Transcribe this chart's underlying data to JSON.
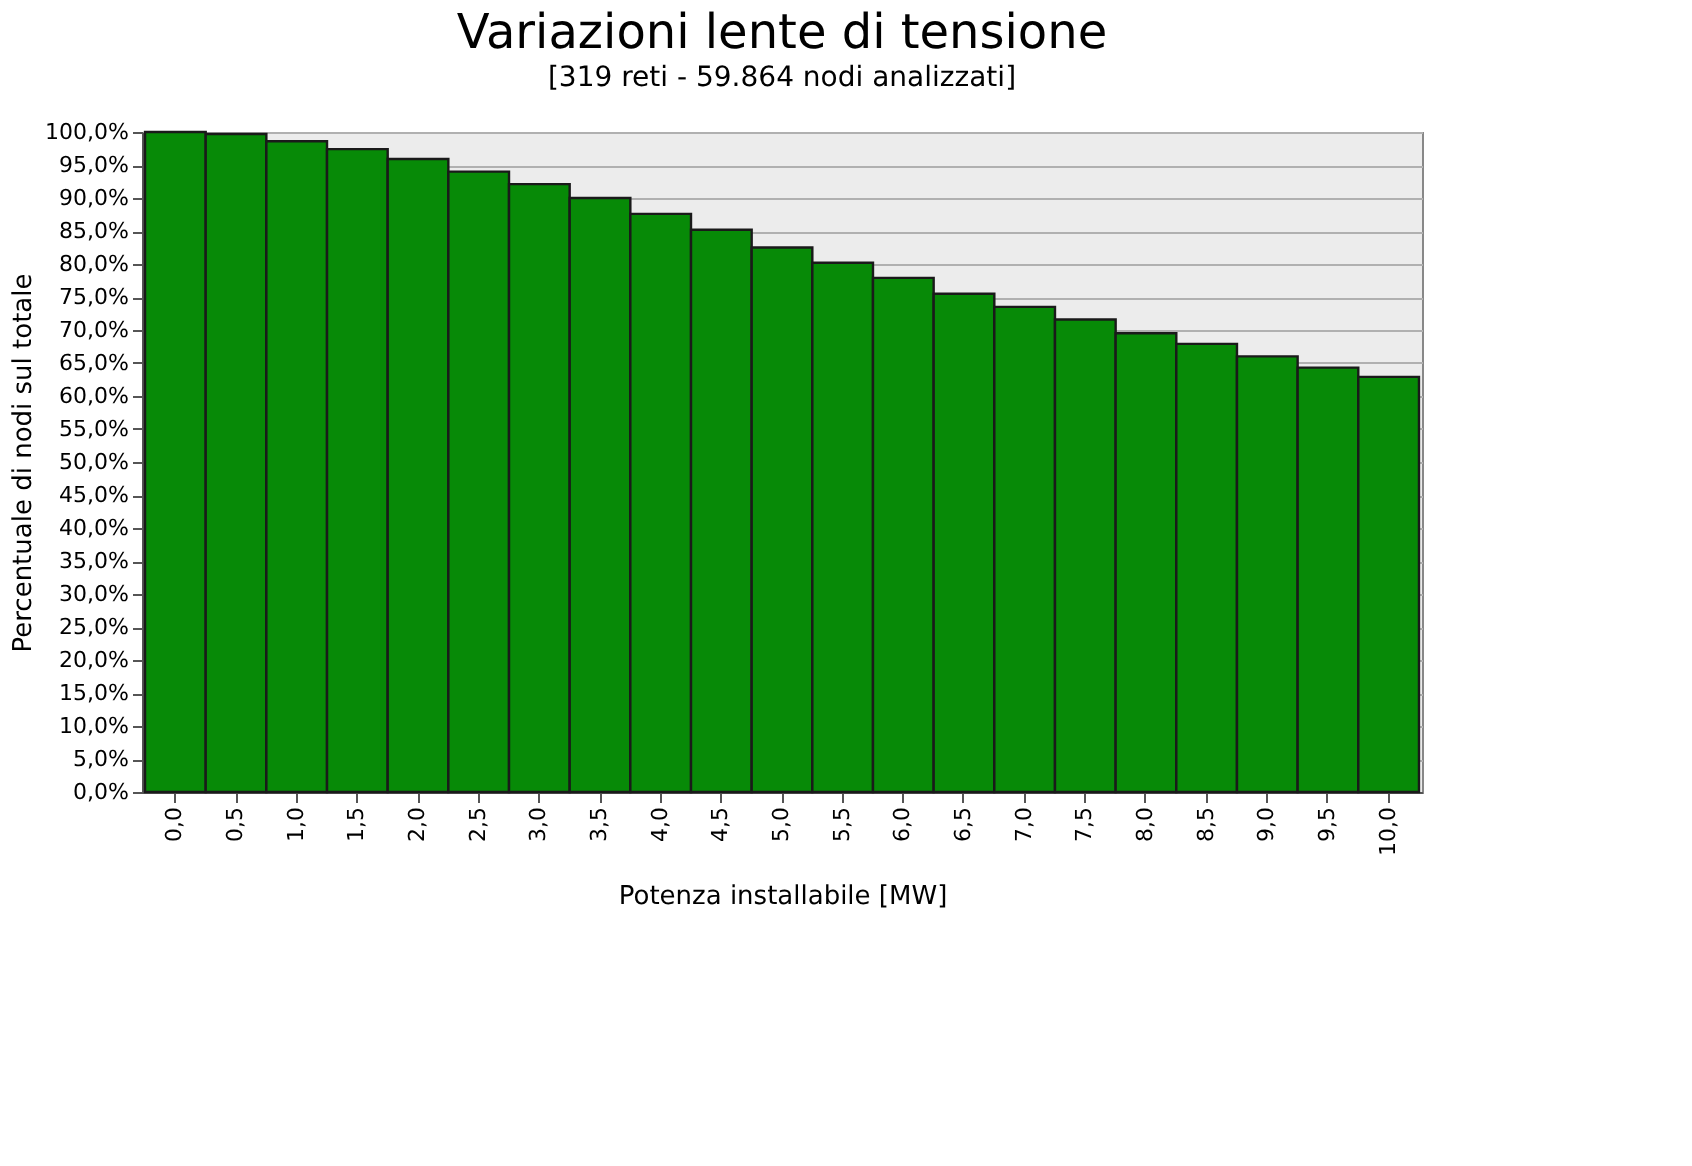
{
  "chart_data": {
    "type": "bar",
    "title": "Variazioni lente di tensione",
    "subtitle": "[319 reti - 59.864 nodi analizzati]",
    "xlabel": "Potenza installabile [MW]",
    "ylabel": "Percentuale di nodi sul totale",
    "categories": [
      "0,0",
      "0,5",
      "1,0",
      "1,5",
      "2,0",
      "2,5",
      "3,0",
      "3,5",
      "4,0",
      "4,5",
      "5,0",
      "5,5",
      "6,0",
      "6,5",
      "7,0",
      "7,5",
      "8,0",
      "8,5",
      "9,0",
      "9,5",
      "10,0"
    ],
    "values": [
      100,
      99.7,
      98.6,
      97.4,
      95.9,
      94,
      92.1,
      90,
      87.6,
      85.2,
      82.5,
      80.2,
      77.9,
      75.5,
      73.5,
      71.6,
      69.5,
      67.9,
      66,
      64.3,
      62.9
    ],
    "color": "#078a07",
    "ylim": [
      0,
      100
    ],
    "yticks": [
      {
        "value": 0,
        "label": "0,0%"
      },
      {
        "value": 5,
        "label": "5,0%"
      },
      {
        "value": 10,
        "label": "10,0%"
      },
      {
        "value": 15,
        "label": "15,0%"
      },
      {
        "value": 20,
        "label": "20,0%"
      },
      {
        "value": 25,
        "label": "25,0%"
      },
      {
        "value": 30,
        "label": "30,0%"
      },
      {
        "value": 35,
        "label": "35,0%"
      },
      {
        "value": 40,
        "label": "40,0%"
      },
      {
        "value": 45,
        "label": "45,0%"
      },
      {
        "value": 50,
        "label": "50,0%"
      },
      {
        "value": 55,
        "label": "55,0%"
      },
      {
        "value": 60,
        "label": "60,0%"
      },
      {
        "value": 65,
        "label": "65,0%"
      },
      {
        "value": 70,
        "label": "70,0%"
      },
      {
        "value": 75,
        "label": "75,0%"
      },
      {
        "value": 80,
        "label": "80,0%"
      },
      {
        "value": 85,
        "label": "85,0%"
      },
      {
        "value": 90,
        "label": "90,0%"
      },
      {
        "value": 95,
        "label": "95,0%"
      },
      {
        "value": 100,
        "label": "100,0%"
      }
    ],
    "grid": "y"
  }
}
